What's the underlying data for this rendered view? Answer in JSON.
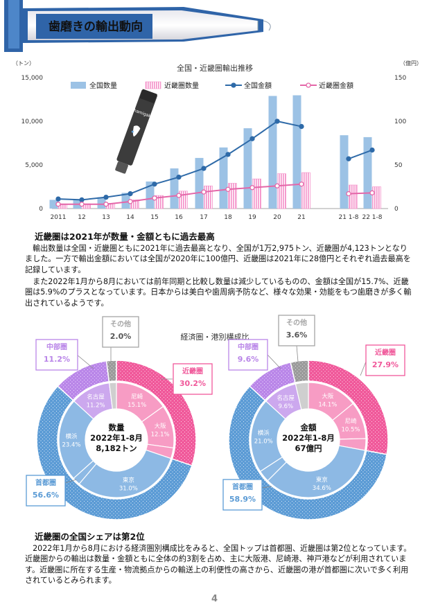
{
  "header": {
    "title": "歯磨きの輸出動向"
  },
  "bar_chart": {
    "chart_data": {
      "type": "bar",
      "title": "全国・近畿圏輸出推移",
      "left_unit": "（トン）",
      "right_unit": "（億円）",
      "categories": [
        "2011",
        "12",
        "13",
        "14",
        "15",
        "16",
        "17",
        "18",
        "19",
        "20",
        "21",
        "21 1-8",
        "22 1-8"
      ],
      "left_ticks": [
        "15,000",
        "10,000",
        "5,000",
        "0"
      ],
      "right_ticks": [
        "150",
        "100",
        "50",
        "0"
      ],
      "ylim_left": [
        0,
        15000
      ],
      "ylim_right": [
        0,
        150
      ],
      "series": [
        {
          "name": "全国数量",
          "type": "bar",
          "axis": "left",
          "color": "#9cc2e5",
          "values": [
            1000,
            1000,
            1300,
            1800,
            3100,
            4600,
            5800,
            7000,
            9200,
            12900,
            12975,
            8400,
            8182
          ]
        },
        {
          "name": "近畿圏数量",
          "type": "bar",
          "axis": "left",
          "color": "#f48fc8",
          "values": [
            500,
            550,
            600,
            1000,
            1500,
            2000,
            2600,
            2900,
            3400,
            4000,
            4123,
            2700,
            2500
          ]
        },
        {
          "name": "全国金額",
          "type": "line",
          "axis": "right",
          "color": "#2e6aa8",
          "values": [
            11,
            10,
            13,
            17,
            28,
            36,
            46,
            62,
            80,
            100,
            94,
            57,
            67
          ]
        },
        {
          "name": "近畿圏金額",
          "type": "line",
          "axis": "right",
          "color": "#e466a8",
          "values": [
            5,
            5,
            5,
            8,
            12,
            15,
            19,
            22,
            24,
            26,
            28,
            17,
            18
          ]
        }
      ]
    }
  },
  "section1": {
    "heading": "近畿圏は2021年が数量・金額ともに過去最高",
    "p1": "　輸出数量は全国・近畿圏ともに2021年に過去最高となり、全国が1万2,975トン、近畿圏が4,123トンとなりました。一方で輸出金額においては全国が2020年に100億円、近畿圏は2021年に28億円とそれぞれ過去最高を記録しています。",
    "p2": "　また2022年1月から8月においては前年同期と比較し数量は減少しているものの、金額は全国が15.7%、近畿圏は5.9%のプラスとなっています。日本からは美白や歯周病予防など、様々な効果・効能をもつ歯磨きが多く輸出されているようです。"
  },
  "donuts": {
    "title": "経済圏・港別構成比",
    "colors": {
      "kinki": "#f0589a",
      "shutoken": "#5b9bd5",
      "chubu": "#b985e8",
      "other": "#a5a5a5"
    },
    "left": {
      "center_line1": "数量",
      "center_line2": "2022年1-8月",
      "center_line3": "8,182トン",
      "outer": [
        {
          "name": "近畿圏",
          "value": 30.2,
          "label": "近畿圏",
          "pct": "30.2%"
        },
        {
          "name": "首都圏",
          "value": 56.6,
          "label": "首都圏",
          "pct": "56.6%"
        },
        {
          "name": "中部圏",
          "value": 11.2,
          "label": "中部圏",
          "pct": "11.2%"
        },
        {
          "name": "その他",
          "value": 2.0,
          "label": "その他",
          "pct": "2.0%"
        }
      ],
      "inner": [
        {
          "name": "尼崎",
          "value": 15.1,
          "pct": "15.1%"
        },
        {
          "name": "大阪",
          "value": 12.1,
          "pct": "12.1%"
        },
        {
          "name": "東京",
          "value": 31.0,
          "pct": "31.0%"
        },
        {
          "name": "横浜",
          "value": 23.4,
          "pct": "23.4%"
        },
        {
          "name": "名古屋",
          "value": 11.2,
          "pct": "11.2%"
        }
      ]
    },
    "right": {
      "center_line1": "金額",
      "center_line2": "2022年1-8月",
      "center_line3": "67億円",
      "outer": [
        {
          "name": "近畿圏",
          "value": 27.9,
          "label": "近畿圏",
          "pct": "27.9%"
        },
        {
          "name": "首都圏",
          "value": 58.9,
          "label": "首都圏",
          "pct": "58.9%"
        },
        {
          "name": "中部圏",
          "value": 9.6,
          "label": "中部圏",
          "pct": "9.6%"
        },
        {
          "name": "その他",
          "value": 3.6,
          "label": "その他",
          "pct": "3.6%"
        }
      ],
      "inner": [
        {
          "name": "大阪",
          "value": 14.1,
          "pct": "14.1%"
        },
        {
          "name": "尼崎",
          "value": 10.5,
          "pct": "10.5%"
        },
        {
          "name": "東京",
          "value": 34.6,
          "pct": "34.6%"
        },
        {
          "name": "横浜",
          "value": 21.0,
          "pct": "21.0%"
        },
        {
          "name": "名古屋",
          "value": 9.6,
          "pct": "9.6%"
        }
      ]
    }
  },
  "section2": {
    "heading": "近畿圏の全国シェアは第2位",
    "p1": "　2022年1月から8月における経済圏別構成比をみると、全国トップは首都圏、近畿圏は第2位となっています。近畿圏からの輸出は数量・金額ともに全体の約3割を占め、主に大阪港、尼崎港、神戸港などが利用されています。近畿圏に所在する生産・物流拠点からの輸送上の利便性の高さから、近畿圏の港が首都圏に次いで多く利用されているとみられます。"
  },
  "footer": {
    "page_number": "4"
  },
  "illustration": {
    "tube_brand": "hamigaki"
  }
}
